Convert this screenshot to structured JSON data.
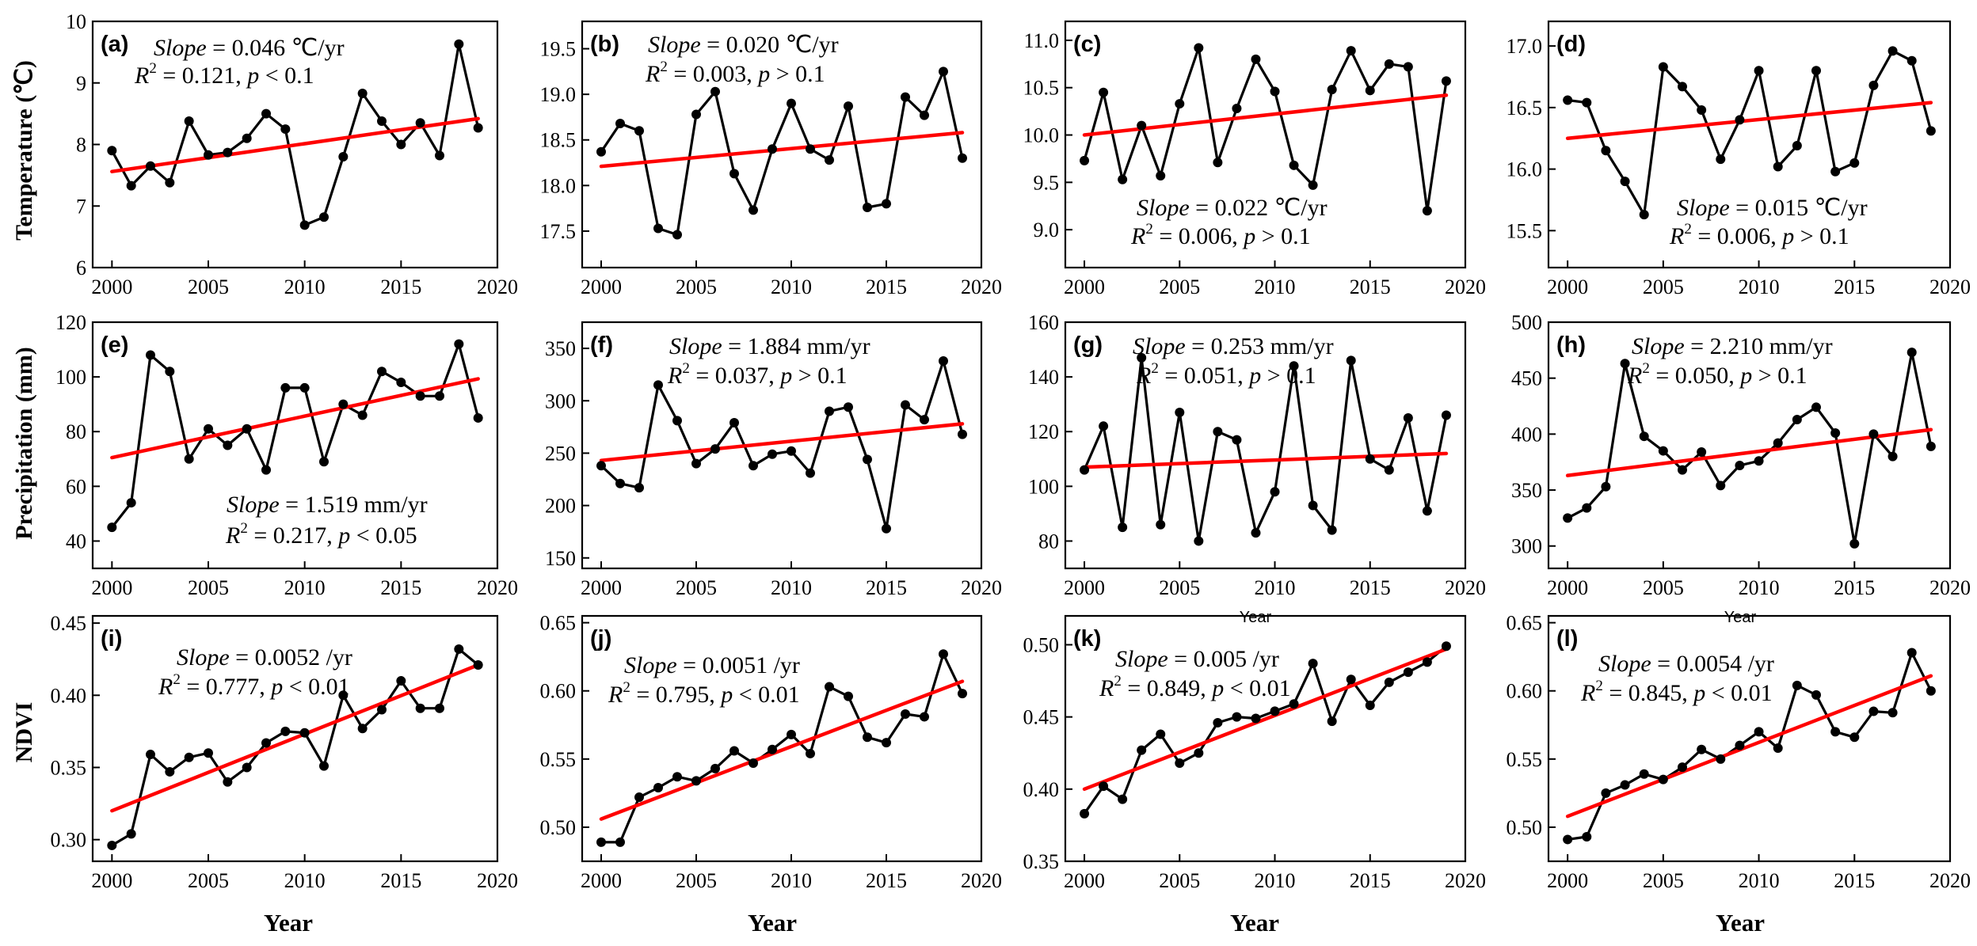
{
  "figure": {
    "row_labels": [
      "Temperature (℃)",
      "Precipitation (mm)",
      "NDVI"
    ],
    "x_axis_label": "Year",
    "small_x_labels": [
      "Year",
      "Year"
    ]
  },
  "chart_data": [
    {
      "id": "a",
      "type": "line",
      "title": "(a)",
      "ylim": [
        6,
        10
      ],
      "yticks": [
        6,
        7,
        8,
        9,
        10
      ],
      "ytick_labels": [
        "6",
        "7",
        "8",
        "9",
        "10"
      ],
      "x": [
        2000,
        2001,
        2002,
        2003,
        2004,
        2005,
        2006,
        2007,
        2008,
        2009,
        2010,
        2011,
        2012,
        2013,
        2014,
        2015,
        2016,
        2017,
        2018,
        2019
      ],
      "values": [
        7.9,
        7.33,
        7.65,
        7.38,
        8.38,
        7.83,
        7.87,
        8.1,
        8.5,
        8.25,
        6.69,
        6.82,
        7.8,
        8.83,
        8.38,
        8.0,
        8.35,
        7.82,
        9.63,
        8.27
      ],
      "trend": [
        7.56,
        8.42
      ],
      "slope_value": "0.046 ℃/yr",
      "r2_value": "0.121",
      "p_value": "< 0.1",
      "xlim": [
        1999,
        2020
      ],
      "xticks": [
        2000,
        2005,
        2010,
        2015,
        2020
      ]
    },
    {
      "id": "b",
      "type": "line",
      "title": "(b)",
      "ylim": [
        17.1,
        19.8
      ],
      "yticks": [
        17.5,
        18,
        18.5,
        19,
        19.5
      ],
      "ytick_labels": [
        "17.5",
        "18.0",
        "18.5",
        "19.0",
        "19.5"
      ],
      "x": [
        2000,
        2001,
        2002,
        2003,
        2004,
        2005,
        2006,
        2007,
        2008,
        2009,
        2010,
        2011,
        2012,
        2013,
        2014,
        2015,
        2016,
        2017,
        2018,
        2019
      ],
      "values": [
        18.37,
        18.68,
        18.6,
        17.53,
        17.46,
        18.78,
        19.03,
        18.13,
        17.73,
        18.4,
        18.9,
        18.4,
        18.28,
        18.87,
        17.76,
        17.8,
        18.97,
        18.77,
        19.25,
        18.3
      ],
      "trend": [
        18.21,
        18.58
      ],
      "slope_value": "0.020 ℃/yr",
      "r2_value": "0.003",
      "p_value": "> 0.1",
      "xlim": [
        1999,
        2020
      ],
      "xticks": [
        2000,
        2005,
        2010,
        2015,
        2020
      ]
    },
    {
      "id": "c",
      "type": "line",
      "title": "(c)",
      "ylim": [
        8.6,
        11.2
      ],
      "yticks": [
        9,
        9.5,
        10,
        10.5,
        11
      ],
      "ytick_labels": [
        "9.0",
        "9.5",
        "10.0",
        "10.5",
        "11.0"
      ],
      "x": [
        2000,
        2001,
        2002,
        2003,
        2004,
        2005,
        2006,
        2007,
        2008,
        2009,
        2010,
        2011,
        2012,
        2013,
        2014,
        2015,
        2016,
        2017,
        2018,
        2019
      ],
      "values": [
        9.73,
        10.45,
        9.53,
        10.1,
        9.57,
        10.33,
        10.92,
        9.71,
        10.28,
        10.8,
        10.46,
        9.68,
        9.47,
        10.48,
        10.89,
        10.47,
        10.75,
        10.72,
        9.2,
        10.57
      ],
      "trend": [
        10.0,
        10.42
      ],
      "slope_value": "0.022 ℃/yr",
      "r2_value": "0.006",
      "p_value": "> 0.1",
      "xlim": [
        1999,
        2020
      ],
      "xticks": [
        2000,
        2005,
        2010,
        2015,
        2020
      ]
    },
    {
      "id": "d",
      "type": "line",
      "title": "(d)",
      "ylim": [
        15.2,
        17.2
      ],
      "yticks": [
        15.5,
        16,
        16.5,
        17
      ],
      "ytick_labels": [
        "15.5",
        "16.0",
        "16.5",
        "17.0"
      ],
      "x": [
        2000,
        2001,
        2002,
        2003,
        2004,
        2005,
        2006,
        2007,
        2008,
        2009,
        2010,
        2011,
        2012,
        2013,
        2014,
        2015,
        2016,
        2017,
        2018,
        2019
      ],
      "values": [
        16.56,
        16.54,
        16.15,
        15.9,
        15.63,
        16.83,
        16.67,
        16.48,
        16.08,
        16.4,
        16.8,
        16.02,
        16.19,
        16.8,
        15.98,
        16.05,
        16.68,
        16.96,
        16.88,
        16.31
      ],
      "trend": [
        16.25,
        16.54
      ],
      "slope_value": "0.015 ℃/yr",
      "r2_value": "0.006",
      "p_value": "> 0.1",
      "xlim": [
        1999,
        2020
      ],
      "xticks": [
        2000,
        2005,
        2010,
        2015,
        2020
      ]
    },
    {
      "id": "e",
      "type": "line",
      "title": "(e)",
      "ylim": [
        30,
        120
      ],
      "yticks": [
        40,
        60,
        80,
        100,
        120
      ],
      "ytick_labels": [
        "40",
        "60",
        "80",
        "100",
        "120"
      ],
      "x": [
        2000,
        2001,
        2002,
        2003,
        2004,
        2005,
        2006,
        2007,
        2008,
        2009,
        2010,
        2011,
        2012,
        2013,
        2014,
        2015,
        2016,
        2017,
        2018,
        2019
      ],
      "values": [
        45,
        54,
        108,
        102,
        70,
        81,
        75,
        81,
        66,
        96,
        96,
        69,
        90,
        86,
        102,
        98,
        93,
        93,
        112,
        85
      ],
      "trend": [
        70.5,
        99.3
      ],
      "slope_value": "1.519 mm/yr",
      "r2_value": "0.217",
      "p_value": "< 0.05",
      "xlim": [
        1999,
        2020
      ],
      "xticks": [
        2000,
        2005,
        2010,
        2015,
        2020
      ]
    },
    {
      "id": "f",
      "type": "line",
      "title": "(f)",
      "ylim": [
        140,
        375
      ],
      "yticks": [
        150,
        200,
        250,
        300,
        350
      ],
      "ytick_labels": [
        "150",
        "200",
        "250",
        "300",
        "350"
      ],
      "x": [
        2000,
        2001,
        2002,
        2003,
        2004,
        2005,
        2006,
        2007,
        2008,
        2009,
        2010,
        2011,
        2012,
        2013,
        2014,
        2015,
        2016,
        2017,
        2018,
        2019
      ],
      "values": [
        238,
        221,
        217,
        315,
        281,
        240,
        254,
        279,
        238,
        249,
        252,
        231,
        290,
        294,
        244,
        178,
        296,
        282,
        338,
        268
      ],
      "trend": [
        243,
        278
      ],
      "slope_value": "1.884 mm/yr",
      "r2_value": "0.037",
      "p_value": "> 0.1",
      "xlim": [
        1999,
        2020
      ],
      "xticks": [
        2000,
        2005,
        2010,
        2015,
        2020
      ]
    },
    {
      "id": "g",
      "type": "line",
      "title": "(g)",
      "ylim": [
        70,
        160
      ],
      "yticks": [
        80,
        100,
        120,
        140,
        160
      ],
      "ytick_labels": [
        "80",
        "100",
        "120",
        "140",
        "160"
      ],
      "x": [
        2000,
        2001,
        2002,
        2003,
        2004,
        2005,
        2006,
        2007,
        2008,
        2009,
        2010,
        2011,
        2012,
        2013,
        2014,
        2015,
        2016,
        2017,
        2018,
        2019
      ],
      "values": [
        106,
        122,
        85,
        147,
        86,
        127,
        80,
        120,
        117,
        83,
        98,
        144,
        93,
        84,
        146,
        110,
        106,
        125,
        91,
        126
      ],
      "trend": [
        107,
        112
      ],
      "slope_value": "0.253 mm/yr",
      "r2_value": "0.051",
      "p_value": "> 0.1",
      "xlim": [
        1999,
        2020
      ],
      "xticks": [
        2000,
        2005,
        2010,
        2015,
        2020
      ]
    },
    {
      "id": "h",
      "type": "line",
      "title": "(h)",
      "ylim": [
        280,
        500
      ],
      "yticks": [
        300,
        350,
        400,
        450,
        500
      ],
      "ytick_labels": [
        "300",
        "350",
        "400",
        "450",
        "500"
      ],
      "x": [
        2000,
        2001,
        2002,
        2003,
        2004,
        2005,
        2006,
        2007,
        2008,
        2009,
        2010,
        2011,
        2012,
        2013,
        2014,
        2015,
        2016,
        2017,
        2018,
        2019
      ],
      "values": [
        325,
        334,
        353,
        463,
        398,
        385,
        368,
        384,
        354,
        372,
        376,
        392,
        413,
        424,
        401,
        302,
        400,
        380,
        473,
        389
      ],
      "trend": [
        363,
        404
      ],
      "slope_value": "2.210 mm/yr",
      "r2_value": "0.050",
      "p_value": "> 0.1",
      "xlim": [
        1999,
        2020
      ],
      "xticks": [
        2000,
        2005,
        2010,
        2015,
        2020
      ]
    },
    {
      "id": "i",
      "type": "line",
      "title": "(i)",
      "ylim": [
        0.285,
        0.455
      ],
      "yticks": [
        0.3,
        0.35,
        0.4,
        0.45
      ],
      "ytick_labels": [
        "0.30",
        "0.35",
        "0.40",
        "0.45"
      ],
      "x": [
        2000,
        2001,
        2002,
        2003,
        2004,
        2005,
        2006,
        2007,
        2008,
        2009,
        2010,
        2011,
        2012,
        2013,
        2014,
        2015,
        2016,
        2017,
        2018,
        2019
      ],
      "values": [
        0.296,
        0.304,
        0.359,
        0.347,
        0.357,
        0.36,
        0.34,
        0.35,
        0.367,
        0.375,
        0.374,
        0.351,
        0.4,
        0.377,
        0.39,
        0.41,
        0.391,
        0.391,
        0.432,
        0.421
      ],
      "trend": [
        0.32,
        0.421
      ],
      "slope_value": "0.0052 /yr",
      "r2_value": "0.777",
      "p_value": "< 0.01",
      "xlim": [
        1999,
        2020
      ],
      "xticks": [
        2000,
        2005,
        2010,
        2015,
        2020
      ]
    },
    {
      "id": "j",
      "type": "line",
      "title": "(j)",
      "ylim": [
        0.475,
        0.655
      ],
      "yticks": [
        0.5,
        0.55,
        0.6,
        0.65
      ],
      "ytick_labels": [
        "0.50",
        "0.55",
        "0.60",
        "0.65"
      ],
      "x": [
        2000,
        2001,
        2002,
        2003,
        2004,
        2005,
        2006,
        2007,
        2008,
        2009,
        2010,
        2011,
        2012,
        2013,
        2014,
        2015,
        2016,
        2017,
        2018,
        2019
      ],
      "values": [
        0.489,
        0.489,
        0.522,
        0.529,
        0.537,
        0.534,
        0.543,
        0.556,
        0.547,
        0.557,
        0.568,
        0.554,
        0.603,
        0.596,
        0.566,
        0.562,
        0.583,
        0.581,
        0.627,
        0.598
      ],
      "trend": [
        0.506,
        0.607
      ],
      "slope_value": "0.0051 /yr",
      "r2_value": "0.795",
      "p_value": "< 0.01",
      "xlim": [
        1999,
        2020
      ],
      "xticks": [
        2000,
        2005,
        2010,
        2015,
        2020
      ]
    },
    {
      "id": "k",
      "type": "line",
      "title": "(k)",
      "ylim": [
        0.35,
        0.52
      ],
      "yticks": [
        0.35,
        0.4,
        0.45,
        0.5
      ],
      "ytick_labels": [
        "0.35",
        "0.40",
        "0.45",
        "0.50"
      ],
      "x": [
        2000,
        2001,
        2002,
        2003,
        2004,
        2005,
        2006,
        2007,
        2008,
        2009,
        2010,
        2011,
        2012,
        2013,
        2014,
        2015,
        2016,
        2017,
        2018,
        2019
      ],
      "values": [
        0.383,
        0.402,
        0.393,
        0.427,
        0.438,
        0.418,
        0.425,
        0.446,
        0.45,
        0.449,
        0.454,
        0.459,
        0.487,
        0.447,
        0.476,
        0.458,
        0.474,
        0.481,
        0.488,
        0.499
      ],
      "trend": [
        0.4,
        0.497
      ],
      "slope_value": "0.005 /yr",
      "r2_value": "0.849",
      "p_value": "< 0.01",
      "xlim": [
        1999,
        2020
      ],
      "xticks": [
        2000,
        2005,
        2010,
        2015,
        2020
      ]
    },
    {
      "id": "l",
      "type": "line",
      "title": "(l)",
      "ylim": [
        0.475,
        0.655
      ],
      "yticks": [
        0.5,
        0.55,
        0.6,
        0.65
      ],
      "ytick_labels": [
        "0.50",
        "0.55",
        "0.60",
        "0.65"
      ],
      "x": [
        2000,
        2001,
        2002,
        2003,
        2004,
        2005,
        2006,
        2007,
        2008,
        2009,
        2010,
        2011,
        2012,
        2013,
        2014,
        2015,
        2016,
        2017,
        2018,
        2019
      ],
      "values": [
        0.491,
        0.493,
        0.525,
        0.531,
        0.539,
        0.535,
        0.544,
        0.557,
        0.55,
        0.56,
        0.57,
        0.558,
        0.604,
        0.597,
        0.57,
        0.566,
        0.585,
        0.584,
        0.628,
        0.6
      ],
      "trend": [
        0.508,
        0.611
      ],
      "slope_value": "0.0054 /yr",
      "r2_value": "0.845",
      "p_value": "< 0.01",
      "xlim": [
        1999,
        2020
      ],
      "xticks": [
        2000,
        2005,
        2010,
        2015,
        2020
      ]
    }
  ]
}
